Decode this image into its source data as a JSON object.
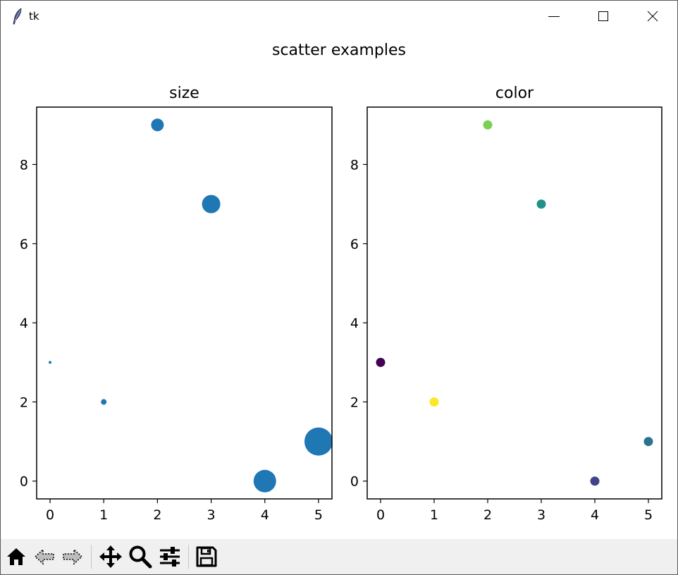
{
  "window": {
    "title": "tk",
    "controls": [
      "minimize-icon",
      "maximize-icon",
      "close-icon"
    ]
  },
  "figure": {
    "suptitle": "scatter examples"
  },
  "chart_data": [
    {
      "type": "scatter",
      "title": "size",
      "xlabel": "",
      "ylabel": "",
      "x": [
        0,
        1,
        2,
        3,
        4,
        5
      ],
      "y": [
        3,
        2,
        9,
        7,
        0,
        1
      ],
      "sizes": [
        4,
        16,
        81,
        169,
        256,
        400
      ],
      "color": "#1f77b4",
      "xlim": [
        -0.25,
        5.25
      ],
      "ylim": [
        -0.45,
        9.45
      ],
      "xticks": [
        "0",
        "1",
        "2",
        "3",
        "4",
        "5"
      ],
      "yticks": [
        "0",
        "2",
        "4",
        "6",
        "8"
      ],
      "grid": false
    },
    {
      "type": "scatter",
      "title": "color",
      "xlabel": "",
      "ylabel": "",
      "x": [
        0,
        1,
        2,
        3,
        4,
        5
      ],
      "y": [
        3,
        2,
        9,
        7,
        0,
        1
      ],
      "colors": [
        "#440154",
        "#fde725",
        "#7ad151",
        "#21918c",
        "#414487",
        "#2c728e"
      ],
      "xlim": [
        -0.25,
        5.25
      ],
      "ylim": [
        -0.45,
        9.45
      ],
      "xticks": [
        "0",
        "1",
        "2",
        "3",
        "4",
        "5"
      ],
      "yticks": [
        "0",
        "2",
        "4",
        "6",
        "8"
      ],
      "grid": false
    }
  ],
  "toolbar": {
    "buttons": [
      "home-icon",
      "back-icon",
      "forward-icon",
      "pan-icon",
      "zoom-icon",
      "configure-subplots-icon",
      "save-icon"
    ]
  }
}
